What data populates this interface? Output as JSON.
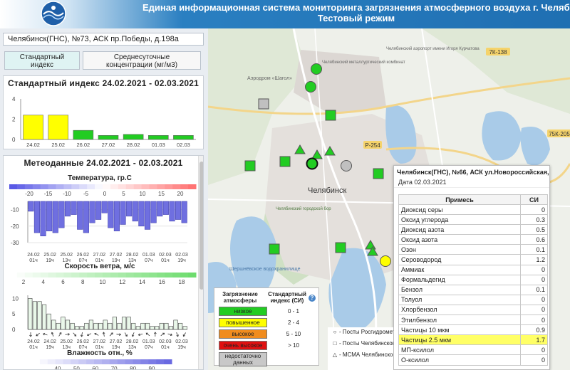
{
  "header": {
    "title_line1": "Единая информационная система мониторинга загрязнения атмосферного воздуха г. Челябинска",
    "title_line2": "Тестовый режим"
  },
  "station": {
    "name": "Челябинск(ГНС), №73, АСК пр.Победы, д.198а"
  },
  "tabs": [
    {
      "label_line1": "Стандартный",
      "label_line2": "индекс"
    },
    {
      "label_line1": "Среднесуточные",
      "label_line2": "концентрации (мг/м3)"
    }
  ],
  "index_panel": {
    "title": "Стандартный индекс 24.02.2021 - 02.03.2021",
    "y_ticks": [
      "4",
      "2",
      "0"
    ],
    "chart_data": {
      "type": "bar",
      "categories": [
        "24.02",
        "25.02",
        "26.02",
        "27.02",
        "28.02",
        "01.03",
        "02.03"
      ],
      "values": [
        2.4,
        2.4,
        0.9,
        0.4,
        0.5,
        0.4,
        0.4
      ],
      "colors": [
        "#ffff00",
        "#ffff00",
        "#22cc22",
        "#22cc22",
        "#22cc22",
        "#22cc22",
        "#22cc22"
      ],
      "ylim": [
        0,
        4
      ]
    }
  },
  "meteo_panel": {
    "title": "Метеоданные 24.02.2021 - 02.03.2021",
    "temperature": {
      "title": "Температура, гр.С",
      "scale_labels": [
        "-20",
        "-15",
        "-10",
        "-5",
        "0",
        "5",
        "10",
        "15",
        "20"
      ],
      "y_ticks": [
        "-10",
        "-20",
        "-30"
      ],
      "chart_data": {
        "type": "bar",
        "values": [
          -11,
          -24,
          -26,
          -23,
          -24,
          -21,
          -14,
          -13,
          -22,
          -24,
          -18,
          -16,
          -12,
          -21,
          -23,
          -19,
          -14,
          -17,
          -20,
          -22,
          -18,
          -14,
          -13,
          -17,
          -16,
          -18
        ],
        "ylim": [
          -30,
          -5
        ]
      },
      "x_labels": [
        {
          "d": "24.02",
          "t": "01ч"
        },
        {
          "d": "25.02",
          "t": "19ч"
        },
        {
          "d": "25.02",
          "t": "13ч"
        },
        {
          "d": "26.02",
          "t": "07ч"
        },
        {
          "d": "27.02",
          "t": "01ч"
        },
        {
          "d": "27.02",
          "t": "19ч"
        },
        {
          "d": "28.02",
          "t": "13ч"
        },
        {
          "d": "01.03",
          "t": "07ч"
        },
        {
          "d": "02.03",
          "t": "01ч"
        },
        {
          "d": "02.03",
          "t": "19ч"
        }
      ]
    },
    "wind": {
      "title": "Скорость ветра, м/с",
      "scale_labels": [
        "2",
        "4",
        "6",
        "8",
        "10",
        "12",
        "14",
        "16",
        "18"
      ],
      "y_ticks": [
        "10",
        "5",
        "0"
      ],
      "chart_data": {
        "type": "bar",
        "values": [
          10,
          9,
          9,
          8,
          5,
          3,
          2,
          4,
          3,
          2,
          1,
          1,
          2,
          3,
          2,
          2,
          3,
          2,
          4,
          2,
          4,
          4,
          2,
          1,
          2,
          2,
          1,
          1,
          2,
          2,
          1,
          3,
          2,
          1
        ],
        "ylim": [
          0,
          11
        ]
      },
      "x_labels": [
        {
          "d": "24.02",
          "t": "01ч"
        },
        {
          "d": "24.02",
          "t": "19ч"
        },
        {
          "d": "25.02",
          "t": "13ч"
        },
        {
          "d": "26.02",
          "t": "07ч"
        },
        {
          "d": "27.02",
          "t": "01ч"
        },
        {
          "d": "27.02",
          "t": "19ч"
        },
        {
          "d": "28.02",
          "t": "13ч"
        },
        {
          "d": "01.03",
          "t": "07ч"
        },
        {
          "d": "02.03",
          "t": "01ч"
        },
        {
          "d": "02.03",
          "t": "19ч"
        }
      ]
    },
    "humidity": {
      "title": "Влажность отн., %",
      "scale_labels": [
        "40",
        "50",
        "60",
        "70",
        "80",
        "90"
      ]
    }
  },
  "map": {
    "labels": {
      "city": "Челябинск",
      "airport": "Аэродром «Шагол»",
      "metallurg": "Челябинский металлургический комбинат",
      "airport_kurchatov": "Челябинский аэропорт имени Игоря Курчатова",
      "forest": "Челябинский городской бор",
      "reservoir": "Шершнёвское водохранилище",
      "road1": "7К-138",
      "road2": "Р-254",
      "road3": "75К-205"
    }
  },
  "popup": {
    "title": "Челябинск(ГНС), №66, АСК ул.Новороссийская, д.8а",
    "date": "Дата 02.03.2021",
    "col_pollutant": "Примесь",
    "col_si": "СИ",
    "rows": [
      {
        "name": "Диоксид серы",
        "si": "0"
      },
      {
        "name": "Оксид углерода",
        "si": "0.3"
      },
      {
        "name": "Диоксид азота",
        "si": "0.5"
      },
      {
        "name": "Оксид азота",
        "si": "0.6"
      },
      {
        "name": "Озон",
        "si": "0.1"
      },
      {
        "name": "Сероводород",
        "si": "1.2"
      },
      {
        "name": "Аммиак",
        "si": "0"
      },
      {
        "name": "Формальдегид",
        "si": "0"
      },
      {
        "name": "Бензол",
        "si": "0.1"
      },
      {
        "name": "Толуол",
        "si": "0"
      },
      {
        "name": "Хлорбензол",
        "si": "0"
      },
      {
        "name": "Этилбензол",
        "si": "0"
      },
      {
        "name": "Частицы 10 мкм",
        "si": "0.9"
      },
      {
        "name": "Частицы 2.5 мкм",
        "si": "1.7",
        "highlight": true
      },
      {
        "name": "МП-ксилол",
        "si": "0"
      },
      {
        "name": "О-ксилол",
        "si": "0"
      }
    ]
  },
  "legend": {
    "header_pollution": "Загрязнение атмосферы",
    "header_index": "Стандартный индекс (СИ)",
    "items": [
      {
        "label": "низкое",
        "range": "0 - 1",
        "color": "#22cc22"
      },
      {
        "label": "повышенное",
        "range": "2 - 4",
        "color": "#ffff00"
      },
      {
        "label": "высокое",
        "range": "5 - 10",
        "color": "#f08c1e"
      },
      {
        "label": "очень высокое",
        "range": "> 10",
        "color": "#e01010"
      },
      {
        "label": "недостаточно данных",
        "range": "",
        "color": "#c8c8c8"
      }
    ]
  },
  "posts_legend": [
    {
      "symbol": "○",
      "label": "- Посты Росгидромета"
    },
    {
      "symbol": "□",
      "label": "- Посты Челябинского"
    },
    {
      "symbol": "△",
      "label": "- МСМА Челябинского"
    }
  ]
}
